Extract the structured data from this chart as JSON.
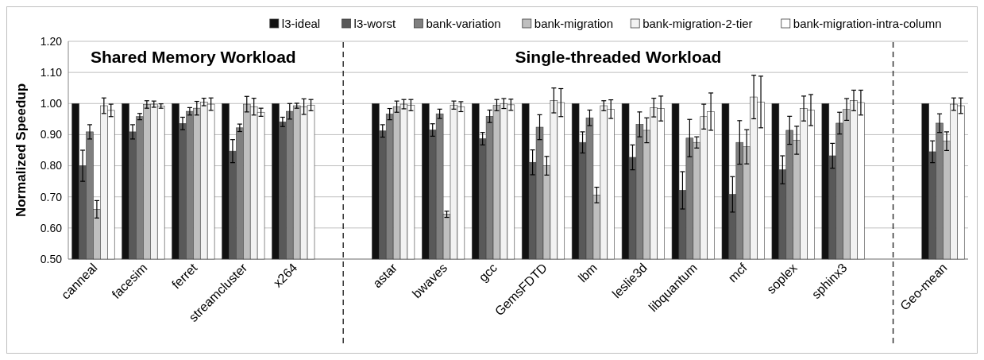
{
  "chart_data": {
    "type": "bar",
    "ylabel": "Normalized Speedup",
    "annotations": [
      "Shared Memory Workload",
      "Single-threaded Workload"
    ],
    "categories": [
      "canneal",
      "facesim",
      "ferret",
      "streamcluster",
      "x264",
      null,
      "astar",
      "bwaves",
      "gcc",
      "GemsFDTD",
      "lbm",
      "leslie3d",
      "libquantum",
      "mcf",
      "soplex",
      "sphinx3",
      null,
      "Geo-mean"
    ],
    "series": [
      {
        "name": "l3-ideal",
        "color": "#111111",
        "values": [
          1,
          1,
          1,
          1,
          1,
          null,
          1,
          1,
          1,
          1,
          1,
          1,
          1,
          1,
          1,
          1,
          null,
          1
        ]
      },
      {
        "name": "l3-worst",
        "color": "#595959",
        "values": [
          0.8,
          0.909,
          0.936,
          0.847,
          0.941,
          null,
          0.912,
          0.915,
          0.887,
          0.811,
          0.875,
          0.827,
          0.721,
          0.708,
          0.787,
          0.832,
          null,
          0.845
        ],
        "errors": [
          0.05,
          0.023,
          0.02,
          0.037,
          0.015,
          null,
          0.02,
          0.02,
          0.02,
          0.04,
          0.034,
          0.04,
          0.06,
          0.057,
          0.045,
          0.04,
          null,
          0.035
        ]
      },
      {
        "name": "bank-variation",
        "color": "#7f7f7f",
        "values": [
          0.909,
          0.958,
          0.975,
          0.922,
          0.975,
          null,
          0.966,
          0.967,
          0.959,
          0.924,
          0.954,
          0.933,
          0.889,
          0.875,
          0.914,
          0.937,
          null,
          0.937
        ],
        "errors": [
          0.023,
          0.01,
          0.012,
          0.012,
          0.025,
          null,
          0.018,
          0.015,
          0.02,
          0.04,
          0.025,
          0.04,
          0.06,
          0.07,
          0.045,
          0.035,
          null,
          0.03
        ]
      },
      {
        "name": "bank-migration",
        "color": "#bfbfbf",
        "values": [
          0.66,
          0.997,
          0.985,
          0.998,
          0.993,
          null,
          0.99,
          0.644,
          0.995,
          0.8,
          0.706,
          0.914,
          0.875,
          0.861,
          0.882,
          0.981,
          null,
          0.879
        ],
        "errors": [
          0.028,
          0.012,
          0.022,
          0.025,
          0.008,
          null,
          0.018,
          0.01,
          0.018,
          0.03,
          0.025,
          0.04,
          0.018,
          0.055,
          0.045,
          0.035,
          null,
          0.03
        ]
      },
      {
        "name": "bank-migration-2-tier",
        "color": "#f2f2f2",
        "values": [
          0.993,
          0.998,
          1.005,
          0.99,
          0.99,
          null,
          0.998,
          0.995,
          1.0,
          1.01,
          0.993,
          0.987,
          0.958,
          1.021,
          0.984,
          1.01,
          null,
          0.998
        ],
        "errors": [
          0.025,
          0.01,
          0.012,
          0.027,
          0.025,
          null,
          0.015,
          0.013,
          0.016,
          0.04,
          0.016,
          0.03,
          0.04,
          0.07,
          0.04,
          0.033,
          null,
          0.02
        ]
      },
      {
        "name": "bank-migration-intra-column",
        "color": "#ffffff",
        "values": [
          0.978,
          0.992,
          0.998,
          0.972,
          0.995,
          null,
          0.995,
          0.99,
          0.996,
          1.003,
          0.982,
          0.984,
          0.974,
          1.005,
          0.979,
          1.003,
          null,
          0.993
        ],
        "errors": [
          0.02,
          0.007,
          0.02,
          0.013,
          0.018,
          null,
          0.018,
          0.016,
          0.018,
          0.045,
          0.03,
          0.04,
          0.06,
          0.083,
          0.05,
          0.04,
          null,
          0.025
        ]
      }
    ],
    "ylim": [
      0.5,
      1.2
    ],
    "yticks": [
      {
        "value": 0.5,
        "label": "0.50"
      },
      {
        "value": 0.6,
        "label": "0.60"
      },
      {
        "value": 0.7,
        "label": "0.70"
      },
      {
        "value": 0.8,
        "label": "0.80"
      },
      {
        "value": 0.9,
        "label": "0.90"
      },
      {
        "value": 1.0,
        "label": "1.00"
      },
      {
        "value": 1.1,
        "label": "1.10"
      },
      {
        "value": 1.2,
        "label": "1.20"
      }
    ],
    "grid": "y",
    "legend": "top right"
  }
}
